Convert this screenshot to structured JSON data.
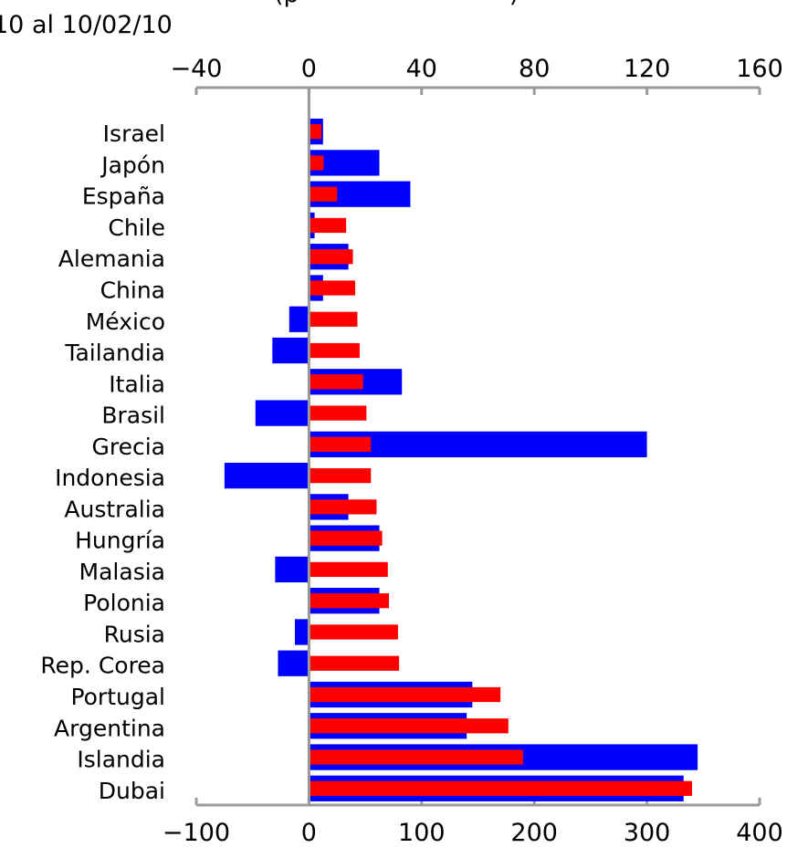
{
  "header": {
    "title_fragment": "(p",
    "title_fragment_end": ")",
    "subtitle": "10  al 10/02/10"
  },
  "chart_data": {
    "type": "bar",
    "orientation": "horizontal",
    "title": "",
    "subtitle": "10  al 10/02/10",
    "categories": [
      "Israel",
      "Japón",
      "España",
      "Chile",
      "Alemania",
      "China",
      "México",
      "Tailandia",
      "Italia",
      "Brasil",
      "Grecia",
      "Indonesia",
      "Australia",
      "Hungría",
      "Malasia",
      "Polonia",
      "Rusia",
      "Rep. Corea",
      "Portugal",
      "Argentina",
      "Islandia",
      "Dubai"
    ],
    "top_axis": {
      "min": -40,
      "max": 160,
      "ticks": [
        -40,
        0,
        40,
        80,
        120,
        160
      ]
    },
    "bottom_axis": {
      "min": -100,
      "max": 400,
      "ticks": [
        -100,
        0,
        100,
        200,
        300,
        400
      ]
    },
    "series": [
      {
        "color": "#0000ff",
        "axis": "top",
        "values": [
          5,
          25,
          36,
          2,
          14,
          5,
          -7,
          -13,
          33,
          -19,
          120,
          -30,
          14,
          25,
          -12,
          25,
          -5,
          -11,
          58,
          56,
          138,
          133
        ]
      },
      {
        "color": "#ff0000",
        "axis": "bottom",
        "values": [
          11,
          13,
          25,
          33,
          39,
          41,
          43,
          45,
          48,
          51,
          55,
          55,
          60,
          65,
          70,
          71,
          79,
          80,
          170,
          177,
          190,
          340
        ]
      }
    ],
    "grid": false,
    "legend": "none"
  }
}
